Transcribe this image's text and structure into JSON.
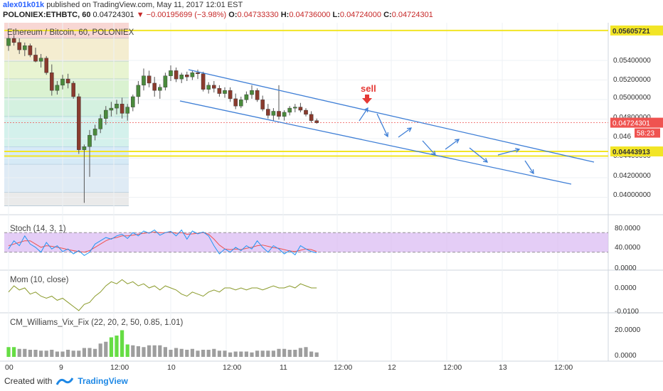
{
  "header": {
    "author": "alex01k01k",
    "published_text": "published on TradingView.com, May 11, 2017 12:01 EST",
    "symbol": "POLONIEX:ETHBTC, 60",
    "price": "0.04724301",
    "change": "−0.00195699 (−3.98%)",
    "o_label": "O:",
    "o_value": "0.04733330",
    "h_label": "H:",
    "h_value": "0.04736000",
    "l_label": "L:",
    "l_value": "0.04724000",
    "c_label": "C:",
    "c_value": "0.04724301"
  },
  "main_panel": {
    "title": "Ethereum / Bitcoin, 60, POLONIEX",
    "price_axis": [
      "0.05400000",
      "0.05200000",
      "0.05000000",
      "0.04800000",
      "0.046",
      "0.04400000",
      "0.04200000",
      "0.04000000"
    ],
    "last_price_label": "0.04724301",
    "countdown_label": "58:23",
    "top_level_label": "0.05605721",
    "bottom_level_label": "0.04443913",
    "annotation_sell": "sell"
  },
  "stoch_panel": {
    "label": "Stoch (14, 3, 1)",
    "axis": [
      "80.0000",
      "40.0000",
      "0.0000"
    ]
  },
  "mom_panel": {
    "label": "Mom (10, close)",
    "axis": [
      "0.0000",
      "-0.0100"
    ]
  },
  "vix_panel": {
    "label": "CM_Williams_Vix_Fix (22, 20, 2, 50, 0.85, 1.01)",
    "axis": [
      "20.0000",
      "0.0000"
    ]
  },
  "time_axis": [
    "00",
    "9",
    "12:00",
    "10",
    "12:00",
    "11",
    "12:00",
    "12",
    "12:00",
    "13",
    "12:00"
  ],
  "footer": {
    "created_with": "Created with",
    "brand": "TradingView"
  },
  "colors": {
    "up": "#26a69a",
    "down": "#ef5350",
    "bull_candle": "#4a8a3c",
    "bear_candle": "#8a3b2e",
    "trend": "#3f7fd6",
    "yellow_level": "#f2e526",
    "stoch_fill": "#d8b8f2",
    "stoch_k": "#2196f3",
    "stoch_d": "#ef5350",
    "mom": "#8a9a2a",
    "vix_gray": "#9e9e9e",
    "vix_green": "#66dd44"
  },
  "chart_data": {
    "type": "candlestick",
    "note_series": "ETHBTC hourly, approximate",
    "ohlc": [
      [
        0.0546,
        0.0557,
        0.0541,
        0.0553
      ],
      [
        0.0553,
        0.0556,
        0.0546,
        0.0549
      ],
      [
        0.0549,
        0.0553,
        0.0538,
        0.0542
      ],
      [
        0.0542,
        0.0549,
        0.0536,
        0.0546
      ],
      [
        0.0546,
        0.0548,
        0.0535,
        0.0537
      ],
      [
        0.0537,
        0.0544,
        0.053,
        0.0531
      ],
      [
        0.0531,
        0.0538,
        0.0525,
        0.0534
      ],
      [
        0.0534,
        0.0536,
        0.0518,
        0.052
      ],
      [
        0.052,
        0.0528,
        0.0498,
        0.0503
      ],
      [
        0.0503,
        0.0512,
        0.0499,
        0.0508
      ],
      [
        0.0508,
        0.0518,
        0.0504,
        0.0514
      ],
      [
        0.0514,
        0.0519,
        0.0505,
        0.051
      ],
      [
        0.051,
        0.0512,
        0.0495,
        0.0497
      ],
      [
        0.0497,
        0.05,
        0.0442,
        0.0446
      ],
      [
        0.0446,
        0.0451,
        0.0395,
        0.0449
      ],
      [
        0.0449,
        0.0465,
        0.042,
        0.046
      ],
      [
        0.046,
        0.047,
        0.0455,
        0.0466
      ],
      [
        0.0466,
        0.048,
        0.0462,
        0.0476
      ],
      [
        0.0476,
        0.0488,
        0.047,
        0.0484
      ],
      [
        0.0484,
        0.0492,
        0.0478,
        0.0486
      ],
      [
        0.0486,
        0.0494,
        0.048,
        0.049
      ],
      [
        0.049,
        0.0496,
        0.0476,
        0.0481
      ],
      [
        0.0481,
        0.049,
        0.0474,
        0.0487
      ],
      [
        0.0487,
        0.0499,
        0.0483,
        0.0497
      ],
      [
        0.0497,
        0.0512,
        0.049,
        0.0508
      ],
      [
        0.0508,
        0.0524,
        0.0503,
        0.0517
      ],
      [
        0.0517,
        0.0522,
        0.0506,
        0.051
      ],
      [
        0.051,
        0.0516,
        0.0497,
        0.0503
      ],
      [
        0.0503,
        0.0509,
        0.0495,
        0.0506
      ],
      [
        0.0506,
        0.052,
        0.0503,
        0.0517
      ],
      [
        0.0517,
        0.0527,
        0.0512,
        0.0522
      ],
      [
        0.0522,
        0.0525,
        0.0511,
        0.0514
      ],
      [
        0.0514,
        0.052,
        0.051,
        0.0518
      ],
      [
        0.0518,
        0.0521,
        0.0512,
        0.0516
      ],
      [
        0.0516,
        0.0522,
        0.0513,
        0.052
      ],
      [
        0.052,
        0.0523,
        0.0514,
        0.0519
      ],
      [
        0.0519,
        0.0521,
        0.0502,
        0.0504
      ],
      [
        0.0504,
        0.0511,
        0.05,
        0.0508
      ],
      [
        0.0508,
        0.0512,
        0.0501,
        0.0505
      ],
      [
        0.0505,
        0.0508,
        0.0497,
        0.05
      ],
      [
        0.05,
        0.0506,
        0.0496,
        0.0503
      ],
      [
        0.0503,
        0.0506,
        0.0492,
        0.0495
      ],
      [
        0.0495,
        0.05,
        0.0485,
        0.0488
      ],
      [
        0.0488,
        0.0497,
        0.0486,
        0.0494
      ],
      [
        0.0494,
        0.0502,
        0.0491,
        0.0499
      ],
      [
        0.0499,
        0.0508,
        0.0495,
        0.0503
      ],
      [
        0.0503,
        0.0505,
        0.0492,
        0.0494
      ],
      [
        0.0494,
        0.0498,
        0.0483,
        0.0485
      ],
      [
        0.0485,
        0.049,
        0.0476,
        0.0479
      ],
      [
        0.0479,
        0.0486,
        0.0474,
        0.0483
      ],
      [
        0.0483,
        0.0508,
        0.0475,
        0.0478
      ],
      [
        0.0478,
        0.0484,
        0.0474,
        0.0482
      ],
      [
        0.0482,
        0.0488,
        0.0479,
        0.0486
      ],
      [
        0.0486,
        0.049,
        0.0482,
        0.0487
      ],
      [
        0.0487,
        0.0491,
        0.0482,
        0.0484
      ],
      [
        0.0484,
        0.0486,
        0.0478,
        0.048
      ],
      [
        0.048,
        0.0483,
        0.0472,
        0.0474
      ],
      [
        0.0474,
        0.0476,
        0.0471,
        0.0472
      ]
    ],
    "price_min": 0.0385,
    "price_max": 0.0568,
    "levels": [
      0.05605721,
      0.04443913,
      0.044
    ],
    "fib_bands": [
      0.0568,
      0.0553,
      0.0531,
      0.0514,
      0.0496,
      0.0478,
      0.0449,
      0.0432,
      0.0405,
      0.0392
    ],
    "stoch_k": [
      30,
      55,
      40,
      70,
      45,
      35,
      20,
      50,
      30,
      40,
      22,
      30,
      15,
      25,
      10,
      20,
      45,
      55,
      65,
      60,
      70,
      75,
      62,
      80,
      70,
      85,
      78,
      88,
      72,
      80,
      84,
      70,
      88,
      60,
      85,
      76,
      82,
      70,
      40,
      15,
      30,
      20,
      35,
      25,
      40,
      30,
      55,
      35,
      20,
      40,
      30,
      15,
      25,
      12,
      40,
      30,
      22,
      18
    ],
    "stoch_d": [
      40,
      45,
      50,
      55,
      55,
      45,
      35,
      40,
      38,
      35,
      32,
      28,
      25,
      22,
      20,
      25,
      35,
      45,
      55,
      62,
      65,
      70,
      70,
      72,
      75,
      78,
      80,
      82,
      80,
      80,
      82,
      78,
      80,
      75,
      76,
      78,
      80,
      75,
      60,
      42,
      30,
      28,
      30,
      28,
      32,
      35,
      40,
      42,
      38,
      34,
      32,
      28,
      24,
      22,
      26,
      30,
      28,
      22
    ],
    "mom": [
      -0.002,
      0.001,
      -0.001,
      0.0,
      -0.003,
      -0.002,
      -0.004,
      -0.005,
      -0.004,
      -0.006,
      -0.005,
      -0.007,
      -0.009,
      -0.011,
      -0.008,
      -0.007,
      -0.004,
      -0.002,
      0.001,
      0.003,
      0.002,
      0.004,
      0.002,
      0.003,
      0.001,
      0.002,
      0.0,
      0.001,
      -0.001,
      0.001,
      0.0,
      -0.001,
      -0.003,
      -0.004,
      -0.002,
      -0.003,
      -0.004,
      -0.002,
      -0.001,
      -0.002,
      0.0,
      0.0,
      -0.001,
      0.0,
      -0.001,
      0.0,
      0.0,
      -0.001,
      0.0,
      0.001,
      0.0,
      0.0,
      0.001,
      0.0,
      0.002,
      0.001,
      0.0,
      0.0
    ],
    "vix": [
      11,
      11,
      9,
      9,
      8,
      8,
      7,
      7,
      8,
      6,
      6,
      8,
      7,
      7,
      10,
      10,
      9,
      15,
      17,
      22,
      24,
      30,
      14,
      13,
      12,
      11,
      13,
      13,
      13,
      11,
      8,
      10,
      9,
      8,
      9,
      7,
      8,
      8,
      9,
      7,
      7,
      5,
      6,
      6,
      6,
      5,
      7,
      7,
      7,
      7,
      9,
      9,
      8,
      8,
      10,
      11,
      6,
      5
    ],
    "vix_green_idx": [
      0,
      1,
      19,
      20,
      21,
      22
    ]
  }
}
